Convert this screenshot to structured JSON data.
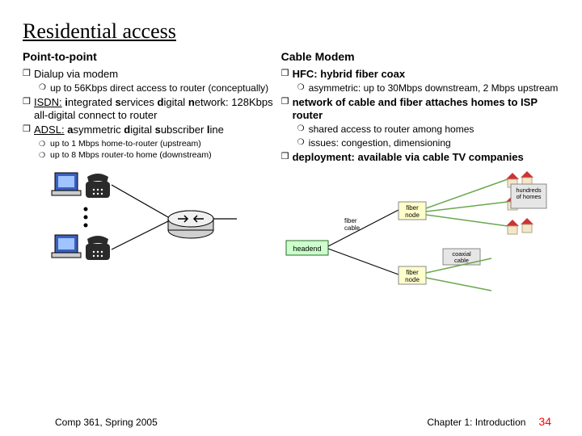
{
  "title": "Residential access",
  "left": {
    "subtitle": "Point-to-point",
    "items": [
      {
        "text": "Dialup via modem",
        "sub": [
          {
            "text": "up to 56Kbps direct access to router (conceptually)"
          }
        ]
      },
      {
        "html": "<span class='u'>ISDN:</span> <span class='b'>i</span>ntegrated <span class='b'>s</span>ervices <span class='b'>d</span>igital <span class='b'>n</span>etwork: 128Kbps all-digital connect to router"
      },
      {
        "html": "<span class='u'>ADSL:</span> <span class='b'>a</span>symmetric <span class='b'>d</span>igital <span class='b'>s</span>ubscriber <span class='b'>l</span>ine",
        "sub3": [
          {
            "text": "up to 1 Mbps home-to-router (upstream)"
          },
          {
            "text": "up to 8 Mbps router-to home (downstream)"
          }
        ]
      }
    ]
  },
  "right": {
    "subtitle": "Cable Modem",
    "items": [
      {
        "html": "HFC: <span class='b'>h</span>ybrid <span class='b'>f</span>iber <span class='b'>c</span>oax",
        "bold": true,
        "sub": [
          {
            "text": "asymmetric: up to 30Mbps downstream, 2 Mbps upstream"
          }
        ]
      },
      {
        "text": "network of cable and fiber attaches homes to ISP router",
        "bold": true,
        "sub": [
          {
            "text": "shared access to router among homes"
          },
          {
            "text": "issues: congestion, dimensioning"
          }
        ]
      },
      {
        "text": "deployment: available via cable TV companies",
        "bold": true
      }
    ]
  },
  "footer": {
    "left": "Comp 361,    Spring 2005",
    "chapter": "Chapter 1: Introduction",
    "page": "34"
  },
  "diagram_right_labels": {
    "headend": "headend",
    "fiber_cable": "fiber cable",
    "fiber_node1": "fiber node",
    "fiber_node2": "fiber node",
    "coax": "coaxial cable",
    "homes": "hundreds of homes"
  },
  "colors": {
    "square": "#000000",
    "circle": "#000000",
    "hollow": "#ffffff",
    "text": "#000000",
    "pagenum": "#ff0000",
    "headend_fill": "#ccffcc",
    "node_fill": "#ffffcc",
    "label_fill": "#e6e6e6",
    "phone_body": "#2a2a2a",
    "monitor_blue": "#3a5fbf",
    "router_gray": "#d0d0d0",
    "house_roof": "#cc3333",
    "house_wall": "#f5e6c8",
    "line_green": "#6aa84f"
  }
}
